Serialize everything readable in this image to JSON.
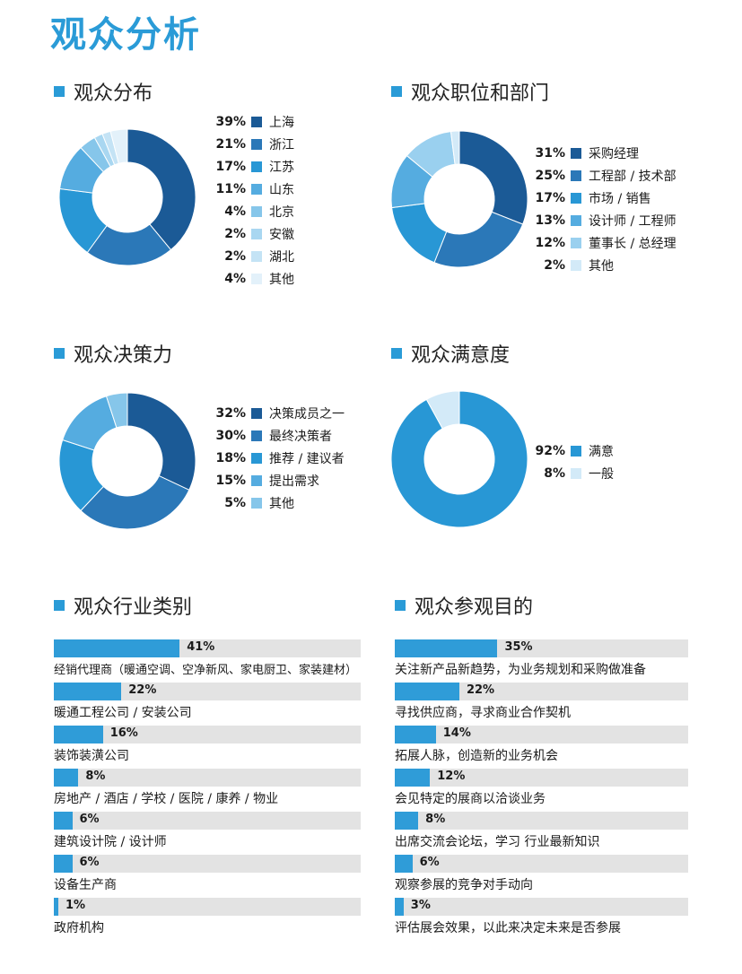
{
  "page": {
    "title": "观众分析"
  },
  "sections": {
    "distribution": {
      "title": "观众分布"
    },
    "position": {
      "title": "观众职位和部门"
    },
    "decision": {
      "title": "观众决策力"
    },
    "satisfaction": {
      "title": "观众满意度"
    },
    "industry": {
      "title": "观众行业类别"
    },
    "purpose": {
      "title": "观众参观目的"
    }
  },
  "chart_data": [
    {
      "id": "distribution",
      "type": "pie",
      "donut": true,
      "title": "观众分布",
      "legend_position": "right",
      "categories": [
        "上海",
        "浙江",
        "江苏",
        "山东",
        "北京",
        "安徽",
        "湖北",
        "其他"
      ],
      "values": [
        39,
        21,
        17,
        11,
        4,
        2,
        2,
        4
      ],
      "labels": [
        "39%",
        "21%",
        "17%",
        "11%",
        "4%",
        "2%",
        "2%",
        "4%"
      ],
      "colors": [
        "#1b5a96",
        "#2b78b8",
        "#2897d5",
        "#55ace0",
        "#86c6ea",
        "#a9d7f1",
        "#c4e3f5",
        "#e3f1fa"
      ]
    },
    {
      "id": "position",
      "type": "pie",
      "donut": true,
      "title": "观众职位和部门",
      "legend_position": "right",
      "categories": [
        "采购经理",
        "工程部 / 技术部",
        "市场 / 销售",
        "设计师 / 工程师",
        "董事长 / 总经理",
        "其他"
      ],
      "values": [
        31,
        25,
        17,
        13,
        12,
        2
      ],
      "labels": [
        "31%",
        "25%",
        "17%",
        "13%",
        "12%",
        "2%"
      ],
      "colors": [
        "#1b5a96",
        "#2b78b8",
        "#2897d5",
        "#55ace0",
        "#9ad0ef",
        "#d3eaf8"
      ]
    },
    {
      "id": "decision",
      "type": "pie",
      "donut": true,
      "title": "观众决策力",
      "legend_position": "right",
      "categories": [
        "决策成员之一",
        "最终决策者",
        "推荐 / 建议者",
        "提出需求",
        "其他"
      ],
      "values": [
        32,
        30,
        18,
        15,
        5
      ],
      "labels": [
        "32%",
        "30%",
        "18%",
        "15%",
        "5%"
      ],
      "colors": [
        "#1b5a96",
        "#2b78b8",
        "#2897d5",
        "#55ace0",
        "#86c6ea"
      ]
    },
    {
      "id": "satisfaction",
      "type": "pie",
      "donut": true,
      "title": "观众满意度",
      "legend_position": "right",
      "categories": [
        "满意",
        "一般"
      ],
      "values": [
        92,
        8
      ],
      "labels": [
        "92%",
        "8%"
      ],
      "colors": [
        "#2897d5",
        "#d3eaf8"
      ]
    },
    {
      "id": "industry",
      "type": "bar",
      "orientation": "horizontal",
      "title": "观众行业类别",
      "xlim": [
        0,
        100
      ],
      "categories": [
        "经销代理商（暖通空调、空净新风、家电厨卫、家装建材）",
        "暖通工程公司 / 安装公司",
        "装饰装潢公司",
        "房地产 / 酒店 / 学校 / 医院 / 康养 / 物业",
        "建筑设计院 / 设计师",
        "设备生产商",
        "政府机构"
      ],
      "values": [
        41,
        22,
        16,
        8,
        6,
        6,
        1
      ],
      "labels": [
        "41%",
        "22%",
        "16%",
        "8%",
        "6%",
        "6%",
        "1%"
      ]
    },
    {
      "id": "purpose",
      "type": "bar",
      "orientation": "horizontal",
      "title": "观众参观目的",
      "xlim": [
        0,
        100
      ],
      "categories": [
        "关注新产品新趋势，为业务规划和采购做准备",
        "寻找供应商，寻求商业合作契机",
        "拓展人脉，创造新的业务机会",
        "会见特定的展商以洽谈业务",
        "出席交流会论坛，学习 行业最新知识",
        "观察参展的竞争对手动向",
        "评估展会效果，以此来决定未来是否参展"
      ],
      "values": [
        35,
        22,
        14,
        12,
        8,
        6,
        3
      ],
      "labels": [
        "35%",
        "22%",
        "14%",
        "12%",
        "8%",
        "6%",
        "3%"
      ]
    }
  ]
}
